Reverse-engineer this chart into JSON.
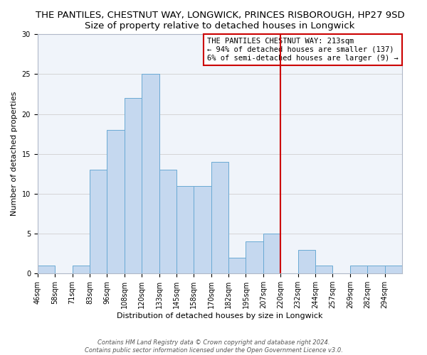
{
  "title": "THE PANTILES, CHESTNUT WAY, LONGWICK, PRINCES RISBOROUGH, HP27 9SD",
  "subtitle": "Size of property relative to detached houses in Longwick",
  "xlabel": "Distribution of detached houses by size in Longwick",
  "ylabel": "Number of detached properties",
  "bin_labels": [
    "46sqm",
    "58sqm",
    "71sqm",
    "83sqm",
    "96sqm",
    "108sqm",
    "120sqm",
    "133sqm",
    "145sqm",
    "158sqm",
    "170sqm",
    "182sqm",
    "195sqm",
    "207sqm",
    "220sqm",
    "232sqm",
    "244sqm",
    "257sqm",
    "269sqm",
    "282sqm",
    "294sqm"
  ],
  "counts": [
    1,
    0,
    1,
    13,
    18,
    22,
    25,
    13,
    11,
    11,
    14,
    2,
    4,
    5,
    0,
    3,
    1,
    0,
    1,
    1,
    1
  ],
  "bar_color": "#c5d8ef",
  "bar_edge_color": "#6aaad4",
  "vline_bin_index": 14,
  "vline_color": "#cc0000",
  "annotation_title": "THE PANTILES CHESTNUT WAY: 213sqm",
  "annotation_line1": "← 94% of detached houses are smaller (137)",
  "annotation_line2": "6% of semi-detached houses are larger (9) →",
  "annotation_box_color": "#ffffff",
  "annotation_box_edge_color": "#cc0000",
  "footer1": "Contains HM Land Registry data © Crown copyright and database right 2024.",
  "footer2": "Contains public sector information licensed under the Open Government Licence v3.0.",
  "ylim": [
    0,
    30
  ],
  "yticks": [
    0,
    5,
    10,
    15,
    20,
    25,
    30
  ],
  "title_fontsize": 9.5,
  "subtitle_fontsize": 9,
  "axis_label_fontsize": 8,
  "tick_fontsize": 7,
  "footer_fontsize": 6,
  "annotation_fontsize": 7.5
}
